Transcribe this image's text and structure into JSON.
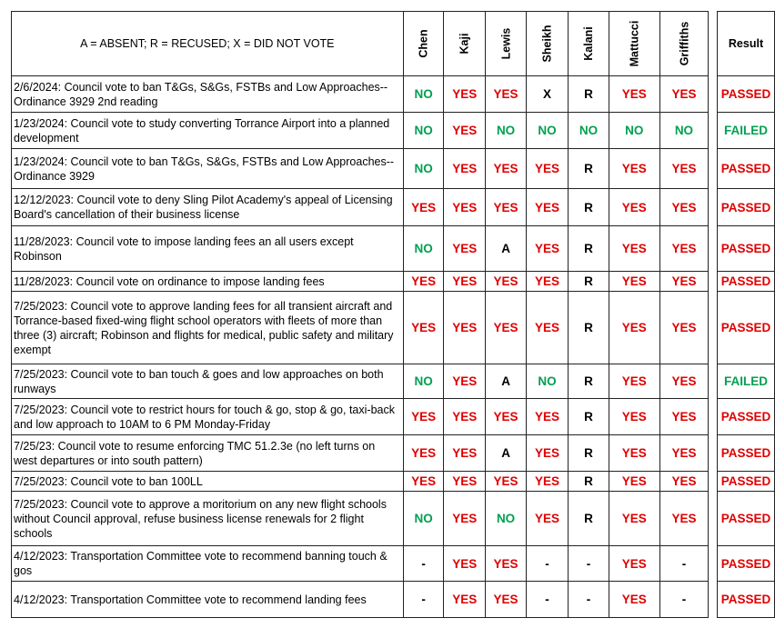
{
  "legend": "A = ABSENT; R = RECUSED;  X = DID NOT VOTE",
  "members": [
    "Chen",
    "Kaji",
    "Lewis",
    "Sheikh",
    "Kalani",
    "Mattucci",
    "Griffiths"
  ],
  "result_header": "Result",
  "colors": {
    "yes": "#e00000",
    "no": "#00a050"
  },
  "rows": [
    {
      "desc": "2/6/2024:  Council vote to ban T&Gs, S&Gs, FSTBs and Low Approaches--Ordinance 3929 2nd reading",
      "votes": [
        "NO",
        "YES",
        "YES",
        "X",
        "R",
        "YES",
        "YES"
      ],
      "result": "PASSED"
    },
    {
      "desc": "1/23/2024:   Council vote to study converting Torrance Airport into a planned development",
      "votes": [
        "NO",
        "YES",
        "NO",
        "NO",
        "NO",
        "NO",
        "NO"
      ],
      "result": "FAILED"
    },
    {
      "desc": "1/23/2024:  Council vote to ban T&Gs, S&Gs, FSTBs and Low Approaches--Ordinance 3929",
      "votes": [
        "NO",
        "YES",
        "YES",
        "YES",
        "R",
        "YES",
        "YES"
      ],
      "result": "PASSED"
    },
    {
      "desc": "12/12/2023:   Council vote to deny Sling Pilot Academy's appeal of Licensing Board's cancellation of their business license",
      "votes": [
        "YES",
        "YES",
        "YES",
        "YES",
        "R",
        "YES",
        "YES"
      ],
      "result": "PASSED"
    },
    {
      "desc": "11/28/2023:   Council vote to impose landing fees an all users except Robinson",
      "votes": [
        "NO",
        "YES",
        "A",
        "YES",
        "R",
        "YES",
        "YES"
      ],
      "result": "PASSED"
    },
    {
      "desc": "11/28/2023:   Council vote on ordinance to impose landing fees",
      "votes": [
        "YES",
        "YES",
        "YES",
        "YES",
        "R",
        "YES",
        "YES"
      ],
      "result": "PASSED"
    },
    {
      "desc": "7/25/2023:   Council vote to approve landing fees for all transient aircraft and Torrance-based fixed-wing flight school operators with fleets of more than three (3) aircraft;  Robinson and flights for medical, public safety and military exempt",
      "votes": [
        "YES",
        "YES",
        "YES",
        "YES",
        "R",
        "YES",
        "YES"
      ],
      "result": "PASSED"
    },
    {
      "desc": "7/25/2023:   Council vote to ban touch & goes and low approaches on both runways",
      "votes": [
        "NO",
        "YES",
        "A",
        "NO",
        "R",
        "YES",
        "YES"
      ],
      "result": "FAILED"
    },
    {
      "desc": "7/25/2023:   Council vote to restrict hours for touch & go, stop & go, taxi-back and low approach to 10AM to 6 PM Monday-Friday",
      "votes": [
        "YES",
        "YES",
        "YES",
        "YES",
        "R",
        "YES",
        "YES"
      ],
      "result": "PASSED"
    },
    {
      "desc": "7/25/23: Council vote to resume enforcing TMC 51.2.3e (no left turns on west departures or into south pattern)",
      "votes": [
        "YES",
        "YES",
        "A",
        "YES",
        "R",
        "YES",
        "YES"
      ],
      "result": "PASSED"
    },
    {
      "desc": "7/25/2023:  Council vote to ban 100LL",
      "votes": [
        "YES",
        "YES",
        "YES",
        "YES",
        "R",
        "YES",
        "YES"
      ],
      "result": "PASSED"
    },
    {
      "desc": "7/25/2023:   Council vote to approve a moritorium on any new flight schools without Council approval, refuse business license renewals for 2 flight schools",
      "votes": [
        "NO",
        "YES",
        "NO",
        "YES",
        "R",
        "YES",
        "YES"
      ],
      "result": "PASSED"
    },
    {
      "desc": "4/12/2023:  Transportation Committee vote to recommend banning touch & gos",
      "votes": [
        "-",
        "YES",
        "YES",
        "-",
        "-",
        "YES",
        "-"
      ],
      "result": "PASSED"
    },
    {
      "desc": "4/12/2023:  Transportation Committee vote to recommend landing fees",
      "votes": [
        "-",
        "YES",
        "YES",
        "-",
        "-",
        "YES",
        "-"
      ],
      "result": "PASSED"
    }
  ]
}
